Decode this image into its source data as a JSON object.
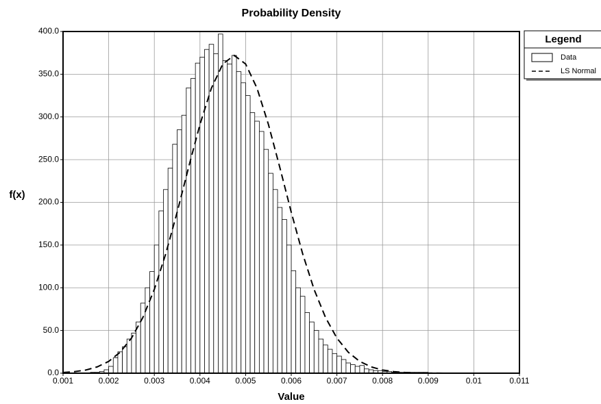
{
  "chart_data": {
    "type": "histogram",
    "title": "Probability Density",
    "xlabel": "Value",
    "ylabel": "f(x)",
    "legend_title": "Legend",
    "legend": "right",
    "grid": true,
    "xlim": [
      0.001,
      0.011
    ],
    "ylim": [
      0,
      400
    ],
    "xticks": [
      0.001,
      0.002,
      0.003,
      0.004,
      0.005,
      0.006,
      0.007,
      0.008,
      0.009,
      0.01,
      0.011
    ],
    "yticks": [
      {
        "value": 0,
        "label": "0.0"
      },
      {
        "value": 50,
        "label": "50.0"
      },
      {
        "value": 100,
        "label": "100.0"
      },
      {
        "value": 150,
        "label": "150.0"
      },
      {
        "value": 200,
        "label": "200.0"
      },
      {
        "value": 250,
        "label": "250.0"
      },
      {
        "value": 300,
        "label": "300.0"
      },
      {
        "value": 350,
        "label": "350.0"
      },
      {
        "value": 400,
        "label": "400.0"
      }
    ],
    "series": [
      {
        "name": "Data",
        "type": "histogram",
        "color": "#ffffff",
        "bins": [
          0.0015,
          0.0016,
          0.0017,
          0.0018,
          0.0019,
          0.002,
          0.0021,
          0.0022,
          0.0023,
          0.0024,
          0.0025,
          0.0026,
          0.0027,
          0.0028,
          0.0029,
          0.003,
          0.0031,
          0.0032,
          0.0033,
          0.0034,
          0.0035,
          0.0036,
          0.0037,
          0.0038,
          0.0039,
          0.004,
          0.0041,
          0.0042,
          0.0043,
          0.0044,
          0.0045,
          0.0046,
          0.0047,
          0.0048,
          0.0049,
          0.005,
          0.0051,
          0.0052,
          0.0053,
          0.0054,
          0.0055,
          0.0056,
          0.0057,
          0.0058,
          0.0059,
          0.006,
          0.0061,
          0.0062,
          0.0063,
          0.0064,
          0.0065,
          0.0066,
          0.0067,
          0.0068,
          0.0069,
          0.007,
          0.0071,
          0.0072,
          0.0073,
          0.0074,
          0.0075,
          0.0076,
          0.0077,
          0.0078,
          0.0079,
          0.008,
          0.0081,
          0.0082,
          0.0083,
          0.0084,
          0.0085,
          0.0086,
          0.0087,
          0.0088,
          0.0089,
          0.009
        ],
        "values": [
          0,
          1,
          1,
          2,
          4,
          8,
          18,
          25,
          31,
          40,
          47,
          60,
          82,
          100,
          119,
          150,
          190,
          215,
          240,
          268,
          285,
          302,
          334,
          345,
          363,
          370,
          379,
          385,
          374,
          397,
          366,
          362,
          372,
          353,
          340,
          325,
          305,
          295,
          283,
          262,
          234,
          215,
          194,
          180,
          150,
          120,
          100,
          90,
          71,
          60,
          50,
          40,
          33,
          28,
          23,
          20,
          16,
          12,
          10,
          8,
          9,
          5,
          4,
          3,
          3,
          2,
          2,
          1,
          1,
          1,
          1,
          1,
          1,
          1,
          1
        ]
      },
      {
        "name": "LS Normal",
        "type": "line",
        "color": "#000000",
        "dash": "dashed",
        "x": [
          0.001,
          0.00125,
          0.0015,
          0.00175,
          0.002,
          0.00225,
          0.0025,
          0.00275,
          0.003,
          0.00325,
          0.0035,
          0.00375,
          0.004,
          0.00425,
          0.0045,
          0.00475,
          0.005,
          0.00525,
          0.0055,
          0.00575,
          0.006,
          0.00625,
          0.0065,
          0.00675,
          0.007,
          0.00725,
          0.0075,
          0.00775,
          0.008,
          0.00825,
          0.0085,
          0.00875,
          0.009,
          0.0095,
          0.01,
          0.011
        ],
        "values": [
          0.8,
          1.8,
          3.7,
          7.4,
          13.8,
          24.5,
          41.1,
          65.3,
          98.1,
          139.8,
          188.5,
          240.8,
          291.2,
          333.6,
          362.0,
          372.0,
          362.0,
          333.6,
          291.2,
          240.8,
          188.5,
          139.8,
          98.1,
          65.3,
          41.1,
          24.5,
          13.8,
          7.4,
          3.7,
          1.8,
          0.8,
          0.3,
          0.1,
          0,
          0,
          0
        ]
      }
    ]
  }
}
